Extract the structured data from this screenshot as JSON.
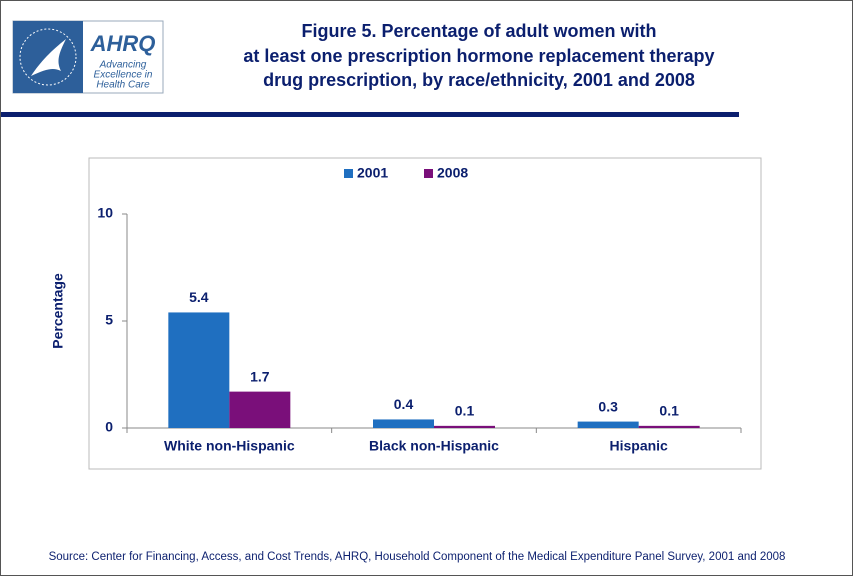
{
  "logo": {
    "name": "AHRQ",
    "tagline": [
      "Advancing",
      "Excellence in",
      "Health Care"
    ]
  },
  "chart_data": {
    "type": "bar",
    "title": [
      "Figure 5. Percentage of adult women with",
      "at least one prescription hormone replacement therapy",
      "drug prescription, by race/ethnicity, 2001 and 2008"
    ],
    "y_label": "Percentage",
    "categories": [
      "White non-Hispanic",
      "Black non-Hispanic",
      "Hispanic"
    ],
    "series": [
      {
        "name": "2001",
        "color": "#1f6fc0",
        "values": [
          5.4,
          0.4,
          0.3
        ]
      },
      {
        "name": "2008",
        "color": "#7a0f7a",
        "values": [
          1.7,
          0.1,
          0.1
        ]
      }
    ],
    "ylim": [
      0,
      10
    ],
    "yticks": [
      0,
      5,
      10
    ],
    "legend": "top",
    "source": "Source: Center for Financing, Access, and Cost Trends, AHRQ, Household Component of the Medical Expenditure Panel Survey,  2001 and 2008"
  }
}
